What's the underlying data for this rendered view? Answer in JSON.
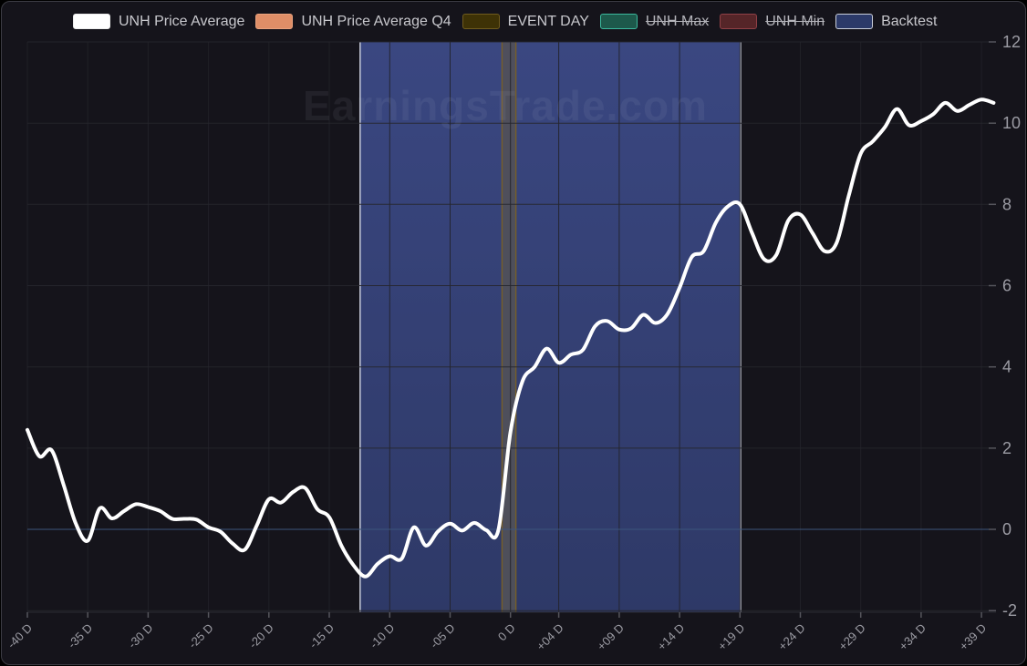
{
  "watermark": "EarningsTrade.com",
  "legend": {
    "items": [
      {
        "label": "UNH Price Average",
        "swatch_fill": "#ffffff",
        "swatch_border": "#ededed",
        "strikethrough": false
      },
      {
        "label": "UNH Price Average Q4",
        "swatch_fill": "#df8e67",
        "swatch_border": "#e9a27e",
        "strikethrough": false
      },
      {
        "label": "EVENT DAY",
        "swatch_fill": "#3e3206",
        "swatch_border": "#6f5b1e",
        "strikethrough": false
      },
      {
        "label": "UNH Max",
        "swatch_fill": "#1d594b",
        "swatch_border": "#3bb89d",
        "strikethrough": true
      },
      {
        "label": "UNH Min",
        "swatch_fill": "#552528",
        "swatch_border": "#8f4046",
        "strikethrough": true
      },
      {
        "label": "Backtest",
        "swatch_fill": "#2c3a69",
        "swatch_border": "#c9ced9",
        "strikethrough": false
      }
    ]
  },
  "chart_data": {
    "type": "line",
    "title": "",
    "x_unit": "days relative to earnings event",
    "x": [
      -40,
      -39,
      -38,
      -37,
      -36,
      -35,
      -34,
      -33,
      -32,
      -31,
      -30,
      -29,
      -28,
      -27,
      -26,
      -25,
      -24,
      -23,
      -22,
      -21,
      -20,
      -19,
      -18,
      -17,
      -16,
      -15,
      -14,
      -13,
      -12,
      -11,
      -10,
      -9,
      -8,
      -7,
      -6,
      -5,
      -4,
      -3,
      -2,
      -1,
      0,
      1,
      2,
      3,
      4,
      5,
      6,
      7,
      8,
      9,
      10,
      11,
      12,
      13,
      14,
      15,
      16,
      17,
      18,
      19,
      20,
      21,
      22,
      23,
      24,
      25,
      26,
      27,
      28,
      29,
      30,
      31,
      32,
      33,
      34,
      35,
      36,
      37,
      38,
      39,
      40
    ],
    "series": [
      {
        "name": "UNH Price Average",
        "color": "#ffffff",
        "values": [
          2.45,
          1.8,
          1.95,
          1.1,
          0.15,
          -0.28,
          0.52,
          0.27,
          0.45,
          0.62,
          0.55,
          0.45,
          0.26,
          0.26,
          0.24,
          0.05,
          -0.06,
          -0.35,
          -0.5,
          0.1,
          0.74,
          0.66,
          0.92,
          1.02,
          0.5,
          0.3,
          -0.4,
          -0.88,
          -1.16,
          -0.85,
          -0.66,
          -0.72,
          0.05,
          -0.4,
          -0.05,
          0.14,
          -0.03,
          0.16,
          -0.02,
          -0.02,
          2.4,
          3.65,
          4.0,
          4.45,
          4.1,
          4.3,
          4.42,
          5.0,
          5.13,
          4.92,
          4.95,
          5.28,
          5.08,
          5.3,
          5.95,
          6.7,
          6.85,
          7.55,
          7.95,
          8.0,
          7.3,
          6.65,
          6.75,
          7.6,
          7.75,
          7.3,
          6.85,
          7.05,
          8.2,
          9.25,
          9.55,
          9.9,
          10.35,
          9.95,
          10.05,
          10.22,
          10.5,
          10.3,
          10.45,
          10.58,
          10.5
        ]
      }
    ],
    "x_tick_days": [
      -40,
      -35,
      -30,
      -25,
      -20,
      -15,
      -10,
      -5,
      0,
      4,
      9,
      14,
      19,
      24,
      29,
      34,
      39
    ],
    "x_tick_labels": [
      "-40 D",
      "-35 D",
      "-30 D",
      "-25 D",
      "-20 D",
      "-15 D",
      "-10 D",
      "-05 D",
      "0 D",
      "+04 D",
      "+09 D",
      "+14 D",
      "+19 D",
      "+24 D",
      "+29 D",
      "+34 D",
      "+39 D"
    ],
    "y_ticks": [
      12,
      10,
      8,
      6,
      4,
      2,
      0,
      -2
    ],
    "xlim": [
      -40,
      40.2
    ],
    "ylim": [
      -2.04,
      12.0
    ],
    "legend_position": "top",
    "grid": true,
    "regions": {
      "backtest": {
        "label": "Backtest",
        "from_day": -12.45,
        "to_day": 19.05,
        "fill_top": "#3a4781",
        "fill_bottom": "#2e3967",
        "edge_color": "#ccd1de"
      },
      "event_day": {
        "label": "EVENT DAY",
        "from_day": -0.7,
        "to_day": 0.45,
        "fill": "#50505a",
        "edge_color": "#7a6026"
      }
    },
    "colors": {
      "zero_line": "#3d567d",
      "grid_vertical": "#222229",
      "grid_horizontal": "#26262d",
      "axis_line": "#2c2c33",
      "axis_text": "#9c9ca4",
      "tick": "#55555c",
      "watermark": "#ccd3e3"
    }
  }
}
